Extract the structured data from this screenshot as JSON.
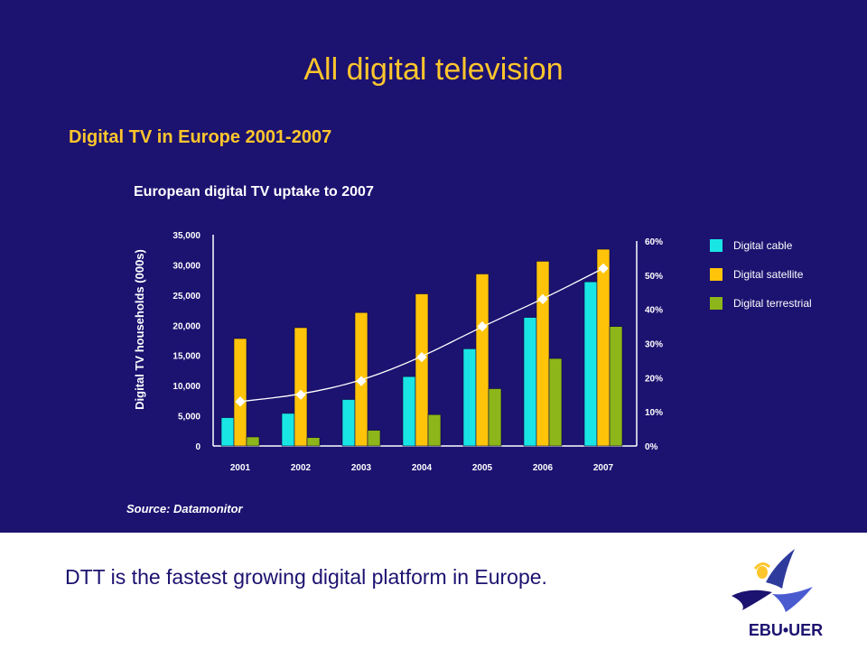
{
  "slide": {
    "title": "All digital television",
    "section_title": "Digital TV in Europe 2001-2007",
    "source": "Source: Datamonitor",
    "footer_text": "DTT is the fastest growing digital platform in Europe.",
    "logo_text": "EBU•UER"
  },
  "colors": {
    "background": "#1c1270",
    "title": "#ffc62c",
    "cable": "#19e5e5",
    "satellite": "#ffc40a",
    "terrestrial": "#8cb619",
    "line": "#ffffff"
  },
  "chart_data": {
    "type": "bar",
    "title": "European digital TV uptake to 2007",
    "ylabel": "Digital TV households (000s)",
    "categories": [
      "2001",
      "2002",
      "2003",
      "2004",
      "2005",
      "2006",
      "2007"
    ],
    "ylim": [
      0,
      35000
    ],
    "yticks": [
      0,
      5000,
      10000,
      15000,
      20000,
      25000,
      30000,
      35000
    ],
    "ytick_labels": [
      "0",
      "5,000",
      "10,000",
      "15,000",
      "20,000",
      "25,000",
      "30,000",
      "35,000"
    ],
    "y2lim": [
      0,
      60
    ],
    "y2ticks": [
      0,
      10,
      20,
      30,
      40,
      50,
      60
    ],
    "y2tick_labels": [
      "0%",
      "10%",
      "20%",
      "30%",
      "40%",
      "50%",
      "60%"
    ],
    "series": [
      {
        "name": "Digital cable",
        "values": [
          4700,
          5400,
          7700,
          11500,
          16100,
          21300,
          27200
        ]
      },
      {
        "name": "Digital satellite",
        "values": [
          17800,
          19600,
          22100,
          25200,
          28500,
          30600,
          32600
        ]
      },
      {
        "name": "Digital terrestrial",
        "values": [
          1500,
          1400,
          2600,
          5200,
          9500,
          14500,
          19800
        ]
      }
    ],
    "line_series": {
      "axis": "secondary",
      "values": [
        13,
        15,
        19,
        26,
        35,
        43,
        52
      ]
    },
    "legend_position": "right",
    "grid": false
  }
}
